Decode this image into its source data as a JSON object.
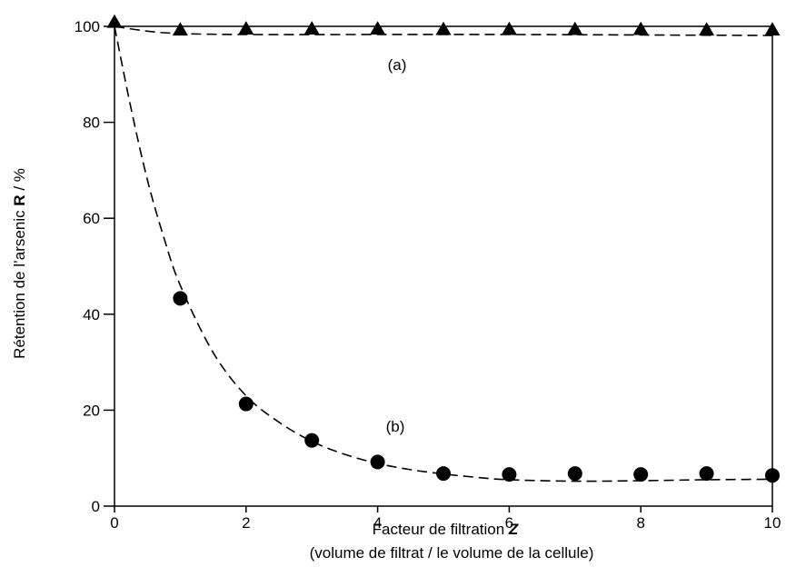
{
  "chart_data": {
    "type": "scatter",
    "xlim": [
      0,
      10
    ],
    "ylim": [
      0,
      100
    ],
    "x_ticks": [
      "0",
      "2",
      "4",
      "6",
      "8",
      "10"
    ],
    "y_ticks": [
      "0",
      "20",
      "40",
      "60",
      "80",
      "100"
    ],
    "xlabel": {
      "line1_text": "Facteur de filtration ",
      "line1_symbol": "Z",
      "line2": "(volume de filtrat / le volume de la cellule)"
    },
    "ylabel": {
      "text": "Rétention de l’arsenic ",
      "symbol": "R",
      "suffix": " / %"
    },
    "grid": false,
    "series": [
      {
        "name": "(a)",
        "marker": "triangle",
        "points": [
          [
            0,
            100.8
          ],
          [
            1,
            99.2
          ],
          [
            2,
            99.4
          ],
          [
            3,
            99.4
          ],
          [
            4,
            99.4
          ],
          [
            5,
            99.3
          ],
          [
            6,
            99.3
          ],
          [
            7,
            99.3
          ],
          [
            8,
            99.3
          ],
          [
            9,
            99.2
          ],
          [
            10,
            99.2
          ]
        ],
        "fit": [
          [
            0,
            100
          ],
          [
            0.5,
            99.0
          ],
          [
            1,
            98.5
          ],
          [
            2,
            98.3
          ],
          [
            4,
            98.3
          ],
          [
            6,
            98.3
          ],
          [
            8,
            98.2
          ],
          [
            10,
            98.1
          ]
        ]
      },
      {
        "name": "(b)",
        "marker": "circle",
        "points": [
          [
            1,
            43.3
          ],
          [
            2,
            21.3
          ],
          [
            3,
            13.7
          ],
          [
            4,
            9.2
          ],
          [
            5,
            6.8
          ],
          [
            6,
            6.6
          ],
          [
            7,
            6.8
          ],
          [
            8,
            6.6
          ],
          [
            9,
            6.8
          ],
          [
            10,
            6.4
          ]
        ],
        "fit": [
          [
            0,
            100
          ],
          [
            0.25,
            83
          ],
          [
            0.5,
            68
          ],
          [
            0.75,
            56
          ],
          [
            1,
            46
          ],
          [
            1.5,
            32
          ],
          [
            2,
            23
          ],
          [
            2.5,
            17.5
          ],
          [
            3,
            13.5
          ],
          [
            3.5,
            10.8
          ],
          [
            4,
            8.9
          ],
          [
            4.5,
            7.6
          ],
          [
            5,
            6.7
          ],
          [
            5.5,
            6.0
          ],
          [
            6,
            5.5
          ],
          [
            7,
            5.2
          ],
          [
            8,
            5.3
          ],
          [
            9,
            5.5
          ],
          [
            10,
            5.6
          ]
        ]
      }
    ]
  }
}
